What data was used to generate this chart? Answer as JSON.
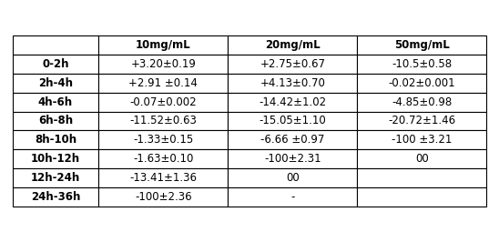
{
  "col_headers": [
    "10mg/mL",
    "20mg/mL",
    "50mg/mL"
  ],
  "row_labels": [
    "0-2h",
    "2h-4h",
    "4h-6h",
    "6h-8h",
    "8h-10h",
    "10h-12h",
    "12h-24h",
    "24h-36h"
  ],
  "col1": [
    "+3.20±0.19",
    "+2.91 ±0.14",
    "-0.07±0.002",
    "-11.52±0.63",
    "-1.33±0.15",
    "-1.63±0.10",
    "-13.41±1.36",
    "-100±2.36"
  ],
  "col2": [
    "+2.75±0.67",
    "+4.13±0.70",
    "-14.42±1.02",
    "-15.05±1.10",
    "-6.66 ±0.97",
    "-100±2.31",
    "00",
    "-"
  ],
  "col3": [
    "-10.5±0.58",
    "-0.02±0.001",
    "-4.85±0.98",
    "-20.72±1.46",
    "-100 ±3.21",
    "00",
    "",
    ""
  ],
  "cell_fontsize": 8.5,
  "bg_color": "white",
  "border_color": "black",
  "edge_color": "black",
  "text_color": "black"
}
